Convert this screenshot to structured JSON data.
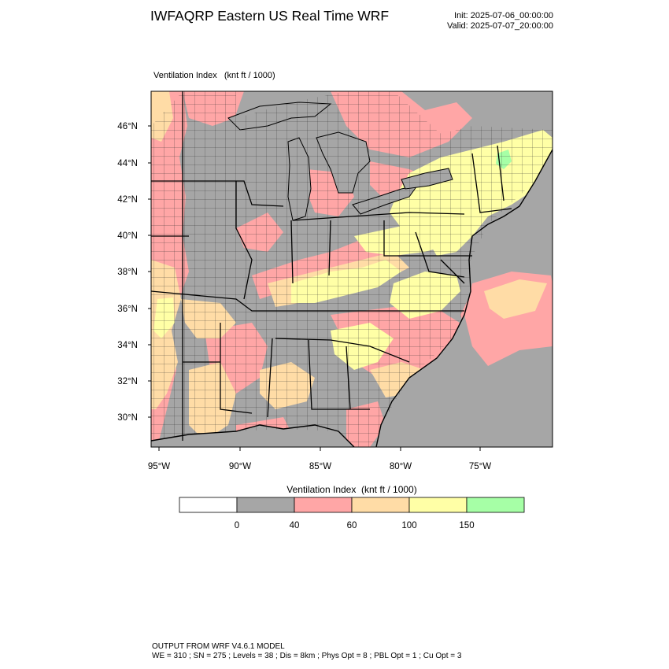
{
  "header": {
    "title": "IWFAQRP Eastern US Real Time WRF",
    "init": "Init: 2025-07-06_00:00:00",
    "valid": "Valid: 2025-07-07_20:00:00"
  },
  "field": {
    "label": "Ventilation Index   (knt ft / 1000)"
  },
  "map": {
    "lat_labels": [
      "46°N",
      "44°N",
      "42°N",
      "40°N",
      "38°N",
      "36°N",
      "34°N",
      "32°N",
      "30°N"
    ],
    "lon_labels": [
      "95°W",
      "90°W",
      "85°W",
      "80°W",
      "75°W"
    ]
  },
  "colorbar": {
    "title": "Ventilation Index  (knt ft / 1000)",
    "ticks": [
      "0",
      "40",
      "60",
      "100",
      "150"
    ],
    "colors": [
      "#ffffff",
      "#a6a6a6",
      "#ffa6a6",
      "#ffdca6",
      "#ffffa6",
      "#a6ffa6"
    ]
  },
  "footer": {
    "line1": "OUTPUT FROM WRF V4.6.1 MODEL",
    "line2": "WE = 310 ; SN = 275 ; Levels = 38 ; Dis = 8km ; Phys Opt = 8 ; PBL Opt = 1 ; Cu Opt = 3"
  }
}
